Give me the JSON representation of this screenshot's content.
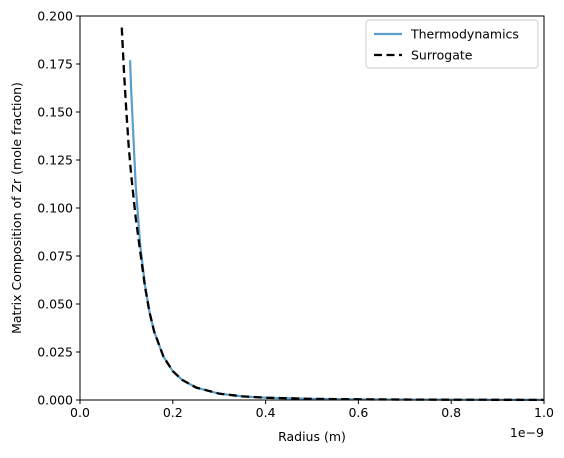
{
  "chart_data": {
    "type": "line",
    "xlabel": "Radius (m)",
    "ylabel": "Matrix Composition of Zr (mole fraction)",
    "x_offset_label": "1e−9",
    "xlim": [
      0.0,
      1e-09
    ],
    "ylim": [
      0.0,
      0.2
    ],
    "x_ticks": [
      0.0,
      2e-10,
      4e-10,
      6e-10,
      8e-10,
      1e-09
    ],
    "x_tick_labels": [
      "0.0",
      "0.2",
      "0.4",
      "0.6",
      "0.8",
      "1.0"
    ],
    "y_ticks": [
      0.0,
      0.025,
      0.05,
      0.075,
      0.1,
      0.125,
      0.15,
      0.175,
      0.2
    ],
    "y_tick_labels": [
      "0.000",
      "0.025",
      "0.050",
      "0.075",
      "0.100",
      "0.125",
      "0.150",
      "0.175",
      "0.200"
    ],
    "grid": false,
    "legend_position": "top-right",
    "series": [
      {
        "name": "Thermodynamics",
        "color": "#5b9ec9",
        "style": "solid",
        "x": [
          1.08e-10,
          1.1e-10,
          1.2e-10,
          1.3e-10,
          1.4e-10,
          1.5e-10,
          1.6e-10,
          1.8e-10,
          2e-10,
          2.2e-10,
          2.5e-10,
          3e-10,
          3.5e-10,
          4e-10,
          5e-10,
          6e-10,
          7e-10,
          8e-10,
          9e-10,
          1e-09
        ],
        "y": [
          0.177,
          0.163,
          0.112,
          0.08,
          0.06,
          0.0455,
          0.0355,
          0.0225,
          0.015,
          0.0105,
          0.0065,
          0.0033,
          0.0019,
          0.0012,
          0.0006,
          0.00035,
          0.00022,
          0.00015,
          0.0001,
          7e-05
        ]
      },
      {
        "name": "Surrogate",
        "color": "#000000",
        "style": "dashed",
        "x": [
          9e-11,
          9.5e-11,
          1e-10,
          1.05e-10,
          1.1e-10,
          1.2e-10,
          1.3e-10,
          1.4e-10,
          1.5e-10,
          1.6e-10,
          1.8e-10,
          2e-10,
          2.2e-10,
          2.5e-10,
          3e-10,
          3.5e-10,
          4e-10,
          5e-10,
          6e-10,
          7e-10,
          8e-10,
          9e-10,
          1e-09
        ],
        "y": [
          0.194,
          0.17,
          0.15,
          0.132,
          0.118,
          0.095,
          0.077,
          0.059,
          0.0455,
          0.0355,
          0.0225,
          0.015,
          0.0105,
          0.0065,
          0.0033,
          0.0019,
          0.0012,
          0.0006,
          0.00035,
          0.00022,
          0.00015,
          0.0001,
          7e-05
        ]
      }
    ]
  }
}
